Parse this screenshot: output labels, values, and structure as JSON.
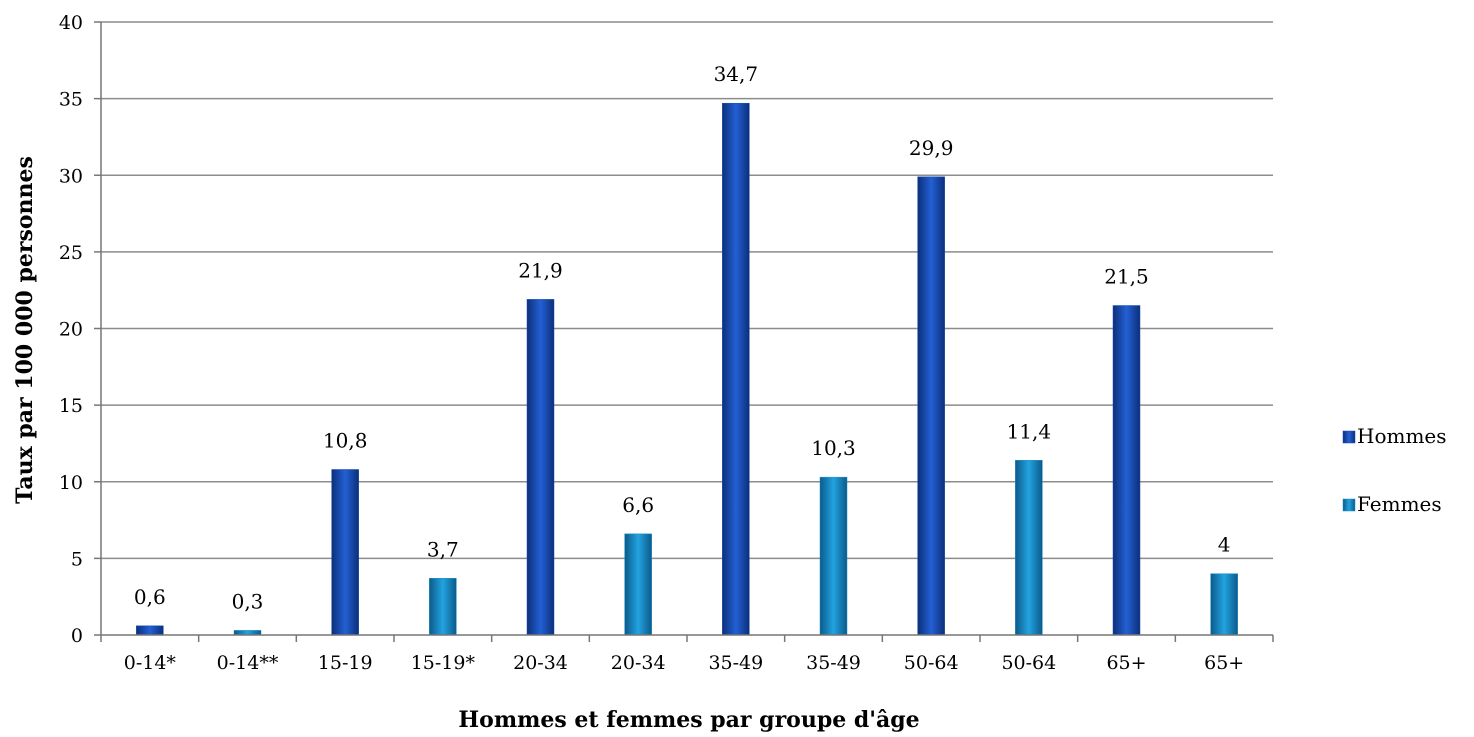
{
  "chart_data": {
    "type": "bar",
    "categories": [
      "0-14*",
      "0-14**",
      "15-19",
      "15-19*",
      "20-34",
      "20-34",
      "35-49",
      "35-49",
      "50-64",
      "50-64",
      "65+",
      "65+"
    ],
    "series": [
      {
        "name": "Hommes",
        "color": "#1a4fb3",
        "values": [
          0.6,
          null,
          10.8,
          null,
          21.9,
          null,
          34.7,
          null,
          29.9,
          null,
          21.5,
          null
        ]
      },
      {
        "name": "Femmes",
        "color": "#1a8fc8",
        "values": [
          null,
          0.3,
          null,
          3.7,
          null,
          6.6,
          null,
          10.3,
          null,
          11.4,
          null,
          4
        ]
      }
    ],
    "data_labels": [
      "0,6",
      "0,3",
      "10,8",
      "3,7",
      "21,9",
      "6,6",
      "34,7",
      "10,3",
      "29,9",
      "11,4",
      "21,5",
      "4"
    ],
    "xlabel": "Hommes et femmes par groupe d'âge",
    "ylabel": "Taux par 100 000 personnes",
    "ylim": [
      0,
      40
    ],
    "yticks": [
      0,
      5,
      10,
      15,
      20,
      25,
      30,
      35,
      40
    ],
    "grid": true,
    "legend": "right"
  }
}
